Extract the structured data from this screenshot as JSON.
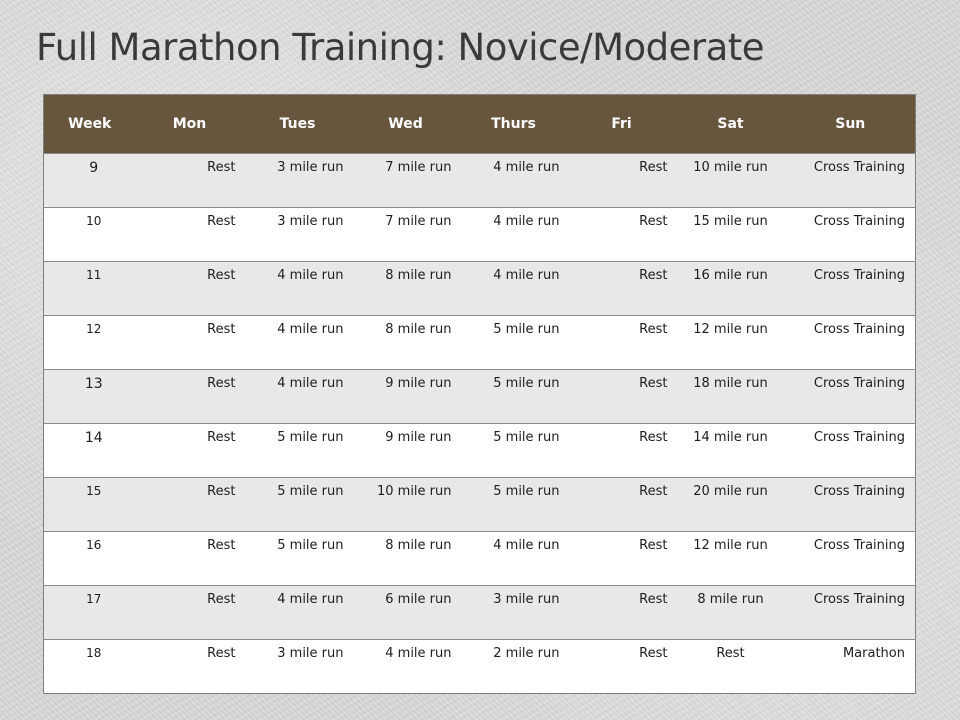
{
  "slide": {
    "title": "Full Marathon Training:  Novice/Moderate"
  },
  "table": {
    "headers": [
      "Week",
      "Mon",
      "Tues",
      "Wed",
      "Thurs",
      "Fri",
      "Sat",
      "Sun"
    ],
    "rows": [
      [
        "9",
        "Rest",
        "3 mile run",
        "7 mile run",
        "4 mile run",
        "Rest",
        "10 mile run",
        "Cross Training"
      ],
      [
        "10",
        "Rest",
        "3 mile run",
        "7 mile run",
        "4 mile run",
        "Rest",
        "15 mile run",
        "Cross Training"
      ],
      [
        "11",
        "Rest",
        "4 mile run",
        "8 mile run",
        "4 mile run",
        "Rest",
        "16 mile run",
        "Cross Training"
      ],
      [
        "12",
        "Rest",
        "4 mile run",
        "8 mile run",
        "5 mile run",
        "Rest",
        "12 mile run",
        "Cross Training"
      ],
      [
        "13",
        "Rest",
        "4 mile run",
        "9 mile run",
        "5 mile run",
        "Rest",
        "18 mile run",
        "Cross Training"
      ],
      [
        "14",
        "Rest",
        "5 mile run",
        "9 mile run",
        "5 mile run",
        "Rest",
        "14 mile run",
        "Cross Training"
      ],
      [
        "15",
        "Rest",
        "5 mile run",
        "10 mile run",
        "5 mile run",
        "Rest",
        "20 mile run",
        "Cross Training"
      ],
      [
        "16",
        "Rest",
        "5 mile run",
        "8 mile run",
        "4 mile run",
        "Rest",
        "12 mile run",
        "Cross Training"
      ],
      [
        "17",
        "Rest",
        "4 mile run",
        "6 mile run",
        "3 mile run",
        "Rest",
        "8 mile run",
        "Cross Training"
      ],
      [
        "18",
        "Rest",
        "3 mile run",
        "4 mile run",
        "2 mile run",
        "Rest",
        "Rest",
        "Marathon"
      ]
    ]
  },
  "colors": {
    "header_bg": "#67563d",
    "header_text": "#ffffff",
    "alt_row_bg": "#e9e8e6",
    "plain_row_bg": "#ffffff"
  }
}
